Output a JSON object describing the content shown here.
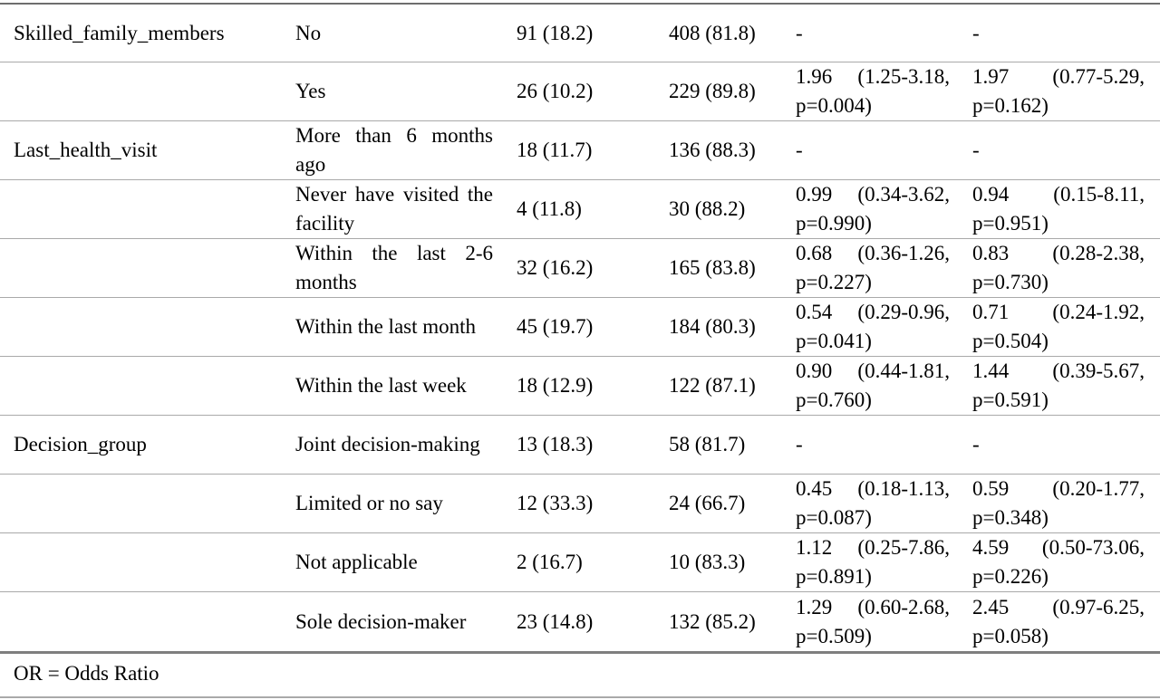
{
  "rows": [
    {
      "variable": "Skilled_family_members",
      "level": "No",
      "c3": "91 (18.2)",
      "c4": "408 (81.8)",
      "c5": "-",
      "c6": "-"
    },
    {
      "variable": "",
      "level": "Yes",
      "c3": "26 (10.2)",
      "c4": "229 (89.8)",
      "c5": "1.96 (1.25-3.18, p=0.004)",
      "c6": "1.97 (0.77-5.29, p=0.162)"
    },
    {
      "variable": "Last_health_visit",
      "level": "More than 6 months ago",
      "c3": "18 (11.7)",
      "c4": "136 (88.3)",
      "c5": "-",
      "c6": "-"
    },
    {
      "variable": "",
      "level": "Never have visited the facility",
      "c3": "4 (11.8)",
      "c4": "30 (88.2)",
      "c5": "0.99 (0.34-3.62, p=0.990)",
      "c6": "0.94 (0.15-8.11, p=0.951)"
    },
    {
      "variable": "",
      "level": "Within the last 2-6 months",
      "c3": "32 (16.2)",
      "c4": "165 (83.8)",
      "c5": "0.68 (0.36-1.26, p=0.227)",
      "c6": "0.83 (0.28-2.38, p=0.730)"
    },
    {
      "variable": "",
      "level": "Within the last month",
      "c3": "45 (19.7)",
      "c4": "184 (80.3)",
      "c5": "0.54 (0.29-0.96, p=0.041)",
      "c6": "0.71 (0.24-1.92, p=0.504)"
    },
    {
      "variable": "",
      "level": "Within the last week",
      "c3": "18 (12.9)",
      "c4": "122 (87.1)",
      "c5": "0.90 (0.44-1.81, p=0.760)",
      "c6": "1.44 (0.39-5.67, p=0.591)"
    },
    {
      "variable": "Decision_group",
      "level": "Joint decision-making",
      "c3": "13 (18.3)",
      "c4": "58 (81.7)",
      "c5": "-",
      "c6": "-"
    },
    {
      "variable": "",
      "level": "Limited or no say",
      "c3": "12 (33.3)",
      "c4": "24 (66.7)",
      "c5": "0.45 (0.18-1.13, p=0.087)",
      "c6": "0.59 (0.20-1.77, p=0.348)"
    },
    {
      "variable": "",
      "level": "Not applicable",
      "c3": "2 (16.7)",
      "c4": "10 (83.3)",
      "c5": "1.12 (0.25-7.86, p=0.891)",
      "c6": "4.59 (0.50-73.06, p=0.226)"
    },
    {
      "variable": "",
      "level": "Sole decision-maker",
      "c3": "23 (14.8)",
      "c4": "132 (85.2)",
      "c5": "1.29 (0.60-2.68, p=0.509)",
      "c6": "2.45 (0.97-6.25, p=0.058)"
    }
  ],
  "footer": "OR = Odds Ratio"
}
